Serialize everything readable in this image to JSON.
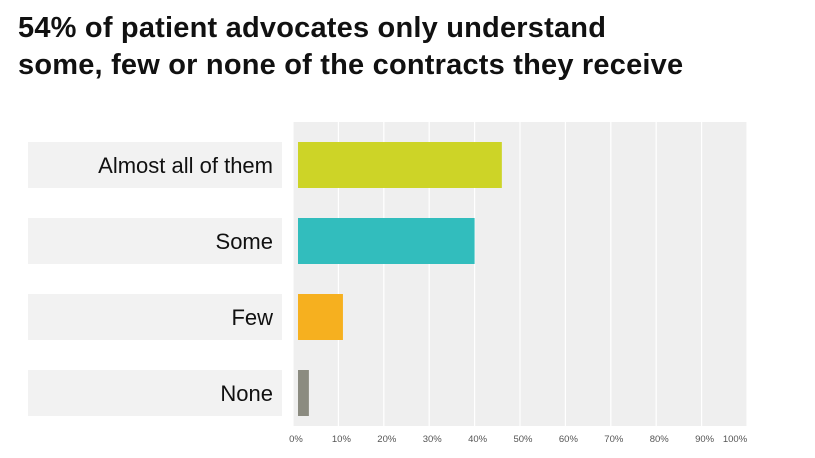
{
  "chart_data": {
    "type": "bar",
    "orientation": "horizontal",
    "title_lines": [
      "54% of patient advocates only understand",
      "some, few or none of the contracts they receive"
    ],
    "categories": [
      "Almost all of them",
      "Some",
      "Few",
      "None"
    ],
    "values": [
      46,
      40,
      11,
      3.5
    ],
    "colors": [
      "#cdd427",
      "#32bdbd",
      "#f6b01f",
      "#8b8b80"
    ],
    "x_ticks": [
      "0%",
      "10%",
      "20%",
      "30%",
      "40%",
      "50%",
      "60%",
      "70%",
      "80%",
      "90%",
      "100%"
    ],
    "xlim": [
      0,
      100
    ],
    "xlabel": "",
    "ylabel": "",
    "grid": true,
    "legend": "none"
  }
}
